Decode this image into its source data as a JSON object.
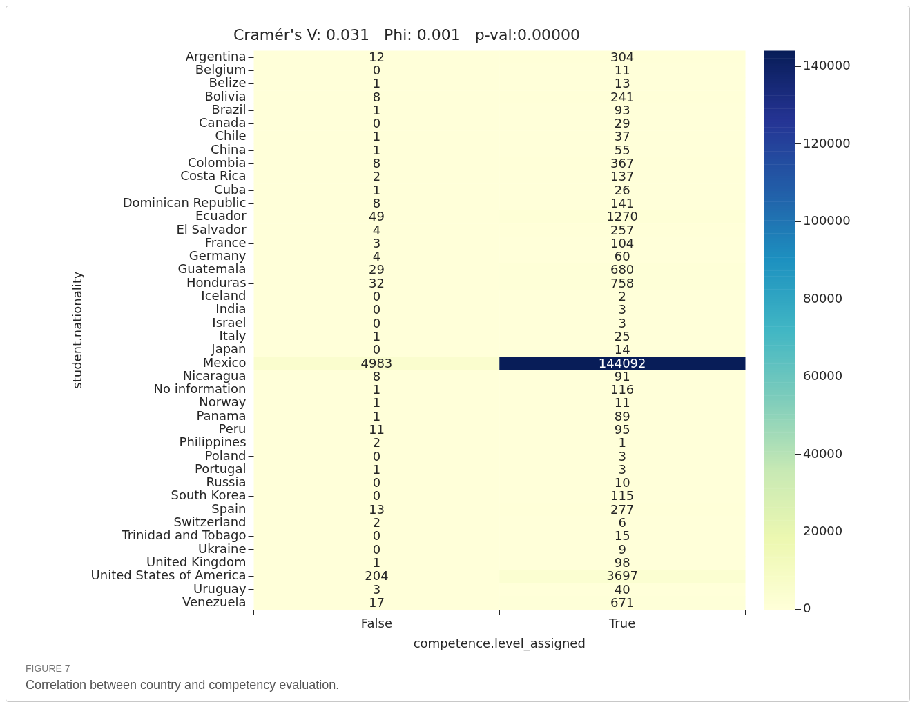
{
  "chart_data": {
    "type": "heatmap",
    "title": "Cramér's V: 0.031   Phi: 0.001   p-val:0.00000",
    "xlabel": "competence.level_assigned",
    "ylabel": "student.nationality",
    "categories": [
      "False",
      "True"
    ],
    "y_categories": [
      "Argentina",
      "Belgium",
      "Belize",
      "Bolivia",
      "Brazil",
      "Canada",
      "Chile",
      "China",
      "Colombia",
      "Costa Rica",
      "Cuba",
      "Dominican Republic",
      "Ecuador",
      "El Salvador",
      "France",
      "Germany",
      "Guatemala",
      "Honduras",
      "Iceland",
      "India",
      "Israel",
      "Italy",
      "Japan",
      "Mexico",
      "Nicaragua",
      "No information",
      "Norway",
      "Panama",
      "Peru",
      "Philippines",
      "Poland",
      "Portugal",
      "Russia",
      "South Korea",
      "Spain",
      "Switzerland",
      "Trinidad and Tobago",
      "Ukraine",
      "United Kingdom",
      "United States of America",
      "Uruguay",
      "Venezuela"
    ],
    "cells": [
      [
        12,
        304
      ],
      [
        0,
        11
      ],
      [
        1,
        13
      ],
      [
        8,
        241
      ],
      [
        1,
        93
      ],
      [
        0,
        29
      ],
      [
        1,
        37
      ],
      [
        1,
        55
      ],
      [
        8,
        367
      ],
      [
        2,
        137
      ],
      [
        1,
        26
      ],
      [
        8,
        141
      ],
      [
        49,
        1270
      ],
      [
        4,
        257
      ],
      [
        3,
        104
      ],
      [
        4,
        60
      ],
      [
        29,
        680
      ],
      [
        32,
        758
      ],
      [
        0,
        2
      ],
      [
        0,
        3
      ],
      [
        0,
        3
      ],
      [
        1,
        25
      ],
      [
        0,
        14
      ],
      [
        4983,
        144092
      ],
      [
        8,
        91
      ],
      [
        1,
        116
      ],
      [
        1,
        11
      ],
      [
        1,
        89
      ],
      [
        11,
        95
      ],
      [
        2,
        1
      ],
      [
        0,
        3
      ],
      [
        1,
        3
      ],
      [
        0,
        10
      ],
      [
        0,
        115
      ],
      [
        13,
        277
      ],
      [
        2,
        6
      ],
      [
        0,
        15
      ],
      [
        0,
        9
      ],
      [
        1,
        98
      ],
      [
        204,
        3697
      ],
      [
        3,
        40
      ],
      [
        17,
        671
      ]
    ],
    "clim": [
      0,
      144092
    ],
    "cticks": [
      0,
      20000,
      40000,
      60000,
      80000,
      100000,
      120000,
      140000
    ],
    "data_labels": true,
    "annotations": [
      "FIGURE 7",
      "Correlation between country and competency evaluation."
    ]
  }
}
